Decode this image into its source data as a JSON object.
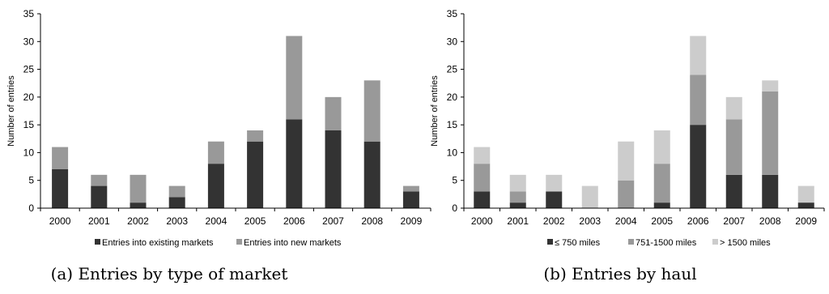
{
  "chart_data": [
    {
      "type": "bar",
      "stacked": true,
      "caption": "(a) Entries by type of market",
      "ylabel": "Number of entries",
      "xlabel": "",
      "ylim": [
        0,
        35
      ],
      "yticks": [
        0,
        5,
        10,
        15,
        20,
        25,
        30,
        35
      ],
      "categories": [
        "2000",
        "2001",
        "2002",
        "2003",
        "2004",
        "2005",
        "2006",
        "2007",
        "2008",
        "2009"
      ],
      "legend_position": "bottom",
      "grid": false,
      "series": [
        {
          "name": "Entries into existing markets",
          "color": "#333333",
          "values": [
            7,
            4,
            1,
            2,
            8,
            12,
            16,
            14,
            12,
            3
          ]
        },
        {
          "name": "Entries into new markets",
          "color": "#999999",
          "values": [
            4,
            2,
            5,
            2,
            4,
            2,
            15,
            6,
            11,
            1
          ]
        }
      ]
    },
    {
      "type": "bar",
      "stacked": true,
      "caption": "(b) Entries by haul",
      "ylabel": "Number of entries",
      "xlabel": "",
      "ylim": [
        0,
        35
      ],
      "yticks": [
        0,
        5,
        10,
        15,
        20,
        25,
        30,
        35
      ],
      "categories": [
        "2000",
        "2001",
        "2002",
        "2003",
        "2004",
        "2005",
        "2006",
        "2007",
        "2008",
        "2009"
      ],
      "legend_position": "bottom",
      "grid": false,
      "series": [
        {
          "name": "≤ 750 miles",
          "color": "#333333",
          "values": [
            3,
            1,
            3,
            0,
            0,
            1,
            15,
            6,
            6,
            1
          ]
        },
        {
          "name": "751-1500 miles",
          "color": "#999999",
          "values": [
            5,
            2,
            0,
            0,
            5,
            7,
            9,
            10,
            15,
            0
          ]
        },
        {
          "name": "> 1500 miles",
          "color": "#cccccc",
          "values": [
            3,
            3,
            3,
            4,
            7,
            6,
            7,
            4,
            2,
            3
          ]
        }
      ]
    }
  ]
}
